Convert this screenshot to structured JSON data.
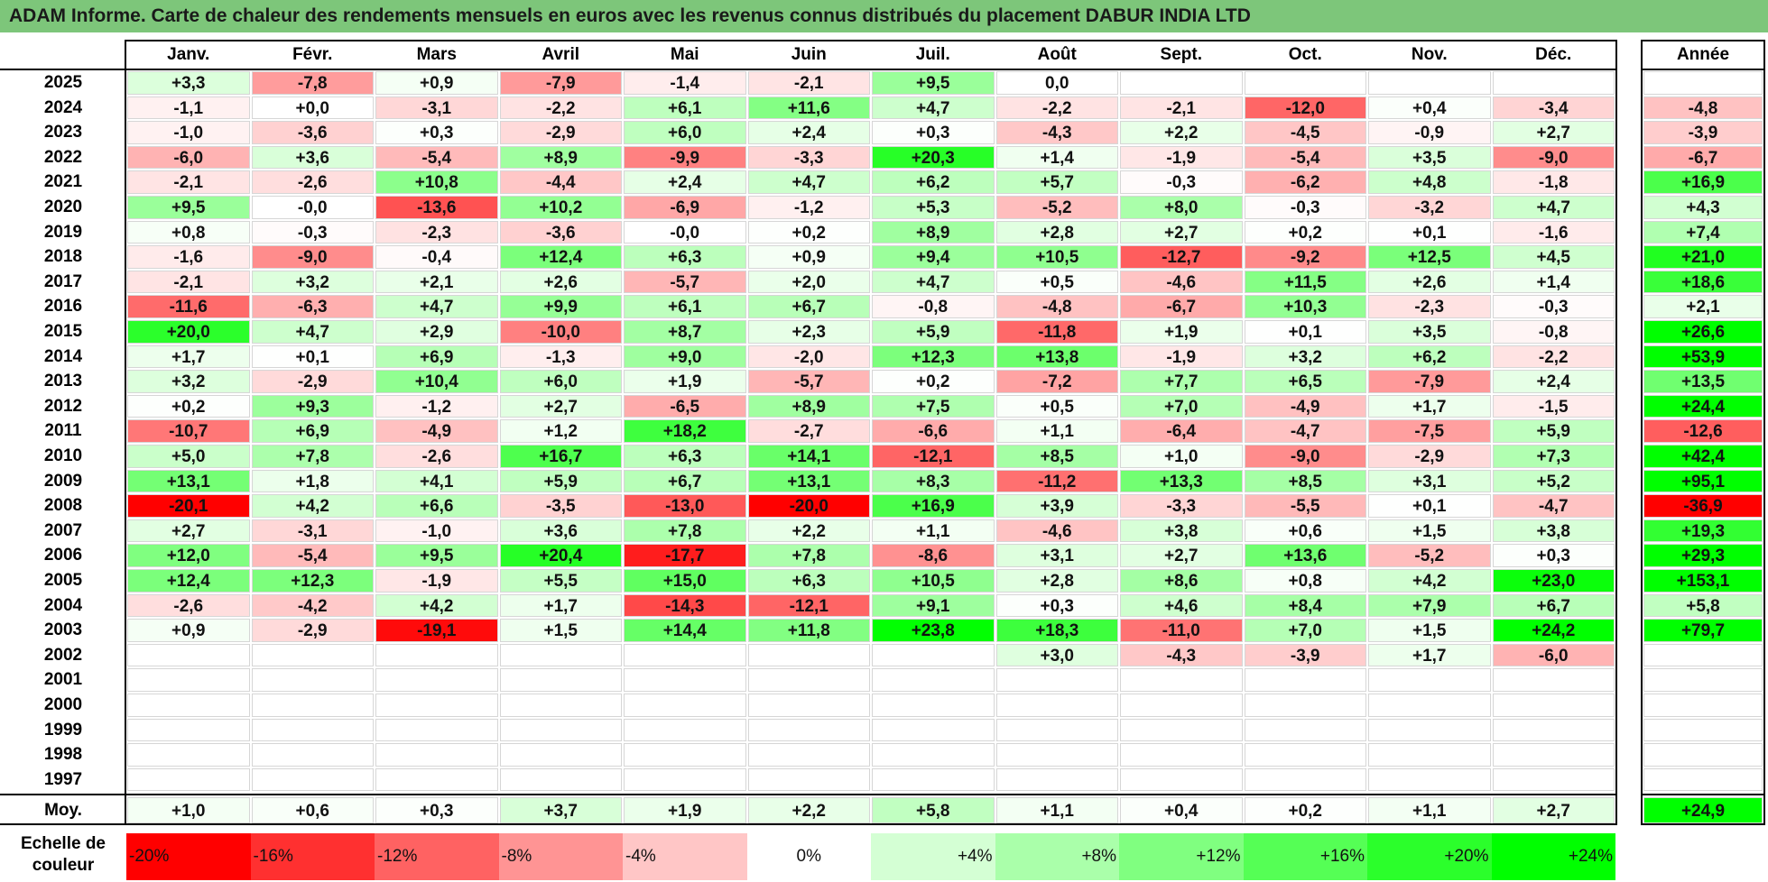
{
  "title": "ADAM Informe. Carte de chaleur des rendements mensuels en euros avec les revenus connus distribués du placement DABUR INDIA LTD",
  "chart_data": {
    "type": "heatmap",
    "title": "ADAM Informe. Carte de chaleur des rendements mensuels en euros avec les revenus connus distribués du placement DABUR INDIA LTD",
    "columns": [
      "Janv.",
      "Févr.",
      "Mars",
      "Avril",
      "Mai",
      "Juin",
      "Juil.",
      "Août",
      "Sept.",
      "Oct.",
      "Nov.",
      "Déc."
    ],
    "year_column_label": "Année",
    "rows": [
      {
        "year": "2025",
        "months": [
          "+3,3",
          "-7,8",
          "+0,9",
          "-7,9",
          "-1,4",
          "-2,1",
          "+9,5",
          "0,0",
          "",
          "",
          "",
          ""
        ],
        "annual": ""
      },
      {
        "year": "2024",
        "months": [
          "-1,1",
          "+0,0",
          "-3,1",
          "-2,2",
          "+6,1",
          "+11,6",
          "+4,7",
          "-2,2",
          "-2,1",
          "-12,0",
          "+0,4",
          "-3,4"
        ],
        "annual": "-4,8"
      },
      {
        "year": "2023",
        "months": [
          "-1,0",
          "-3,6",
          "+0,3",
          "-2,9",
          "+6,0",
          "+2,4",
          "+0,3",
          "-4,3",
          "+2,2",
          "-4,5",
          "-0,9",
          "+2,7"
        ],
        "annual": "-3,9"
      },
      {
        "year": "2022",
        "months": [
          "-6,0",
          "+3,6",
          "-5,4",
          "+8,9",
          "-9,9",
          "-3,3",
          "+20,3",
          "+1,4",
          "-1,9",
          "-5,4",
          "+3,5",
          "-9,0"
        ],
        "annual": "-6,7"
      },
      {
        "year": "2021",
        "months": [
          "-2,1",
          "-2,6",
          "+10,8",
          "-4,4",
          "+2,4",
          "+4,7",
          "+6,2",
          "+5,7",
          "-0,3",
          "-6,2",
          "+4,8",
          "-1,8"
        ],
        "annual": "+16,9"
      },
      {
        "year": "2020",
        "months": [
          "+9,5",
          "-0,0",
          "-13,6",
          "+10,2",
          "-6,9",
          "-1,2",
          "+5,3",
          "-5,2",
          "+8,0",
          "-0,3",
          "-3,2",
          "+4,7"
        ],
        "annual": "+4,3"
      },
      {
        "year": "2019",
        "months": [
          "+0,8",
          "-0,3",
          "-2,3",
          "-3,6",
          "-0,0",
          "+0,2",
          "+8,9",
          "+2,8",
          "+2,7",
          "+0,2",
          "+0,1",
          "-1,6"
        ],
        "annual": "+7,4"
      },
      {
        "year": "2018",
        "months": [
          "-1,6",
          "-9,0",
          "-0,4",
          "+12,4",
          "+6,3",
          "+0,9",
          "+9,4",
          "+10,5",
          "-12,7",
          "-9,2",
          "+12,5",
          "+4,5"
        ],
        "annual": "+21,0"
      },
      {
        "year": "2017",
        "months": [
          "-2,1",
          "+3,2",
          "+2,1",
          "+2,6",
          "-5,7",
          "+2,0",
          "+4,7",
          "+0,5",
          "-4,6",
          "+11,5",
          "+2,6",
          "+1,4"
        ],
        "annual": "+18,6"
      },
      {
        "year": "2016",
        "months": [
          "-11,6",
          "-6,3",
          "+4,7",
          "+9,9",
          "+6,1",
          "+6,7",
          "-0,8",
          "-4,8",
          "-6,7",
          "+10,3",
          "-2,3",
          "-0,3"
        ],
        "annual": "+2,1"
      },
      {
        "year": "2015",
        "months": [
          "+20,0",
          "+4,7",
          "+2,9",
          "-10,0",
          "+8,7",
          "+2,3",
          "+5,9",
          "-11,8",
          "+1,9",
          "+0,1",
          "+3,5",
          "-0,8"
        ],
        "annual": "+26,6"
      },
      {
        "year": "2014",
        "months": [
          "+1,7",
          "+0,1",
          "+6,9",
          "-1,3",
          "+9,0",
          "-2,0",
          "+12,3",
          "+13,8",
          "-1,9",
          "+3,2",
          "+6,2",
          "-2,2"
        ],
        "annual": "+53,9"
      },
      {
        "year": "2013",
        "months": [
          "+3,2",
          "-2,9",
          "+10,4",
          "+6,0",
          "+1,9",
          "-5,7",
          "+0,2",
          "-7,2",
          "+7,7",
          "+6,5",
          "-7,9",
          "+2,4"
        ],
        "annual": "+13,5"
      },
      {
        "year": "2012",
        "months": [
          "+0,2",
          "+9,3",
          "-1,2",
          "+2,7",
          "-6,5",
          "+8,9",
          "+7,5",
          "+0,5",
          "+7,0",
          "-4,9",
          "+1,7",
          "-1,5"
        ],
        "annual": "+24,4"
      },
      {
        "year": "2011",
        "months": [
          "-10,7",
          "+6,9",
          "-4,9",
          "+1,2",
          "+18,2",
          "-2,7",
          "-6,6",
          "+1,1",
          "-6,4",
          "-4,7",
          "-7,5",
          "+5,9"
        ],
        "annual": "-12,6"
      },
      {
        "year": "2010",
        "months": [
          "+5,0",
          "+7,8",
          "-2,6",
          "+16,7",
          "+6,3",
          "+14,1",
          "-12,1",
          "+8,5",
          "+1,0",
          "-9,0",
          "-2,9",
          "+7,3"
        ],
        "annual": "+42,4"
      },
      {
        "year": "2009",
        "months": [
          "+13,1",
          "+1,8",
          "+4,1",
          "+5,9",
          "+6,7",
          "+13,1",
          "+8,3",
          "-11,2",
          "+13,3",
          "+8,5",
          "+3,1",
          "+5,2"
        ],
        "annual": "+95,1"
      },
      {
        "year": "2008",
        "months": [
          "-20,1",
          "+4,2",
          "+6,6",
          "-3,5",
          "-13,0",
          "-20,0",
          "+16,9",
          "+3,9",
          "-3,3",
          "-5,5",
          "+0,1",
          "-4,7"
        ],
        "annual": "-36,9"
      },
      {
        "year": "2007",
        "months": [
          "+2,7",
          "-3,1",
          "-1,0",
          "+3,6",
          "+7,8",
          "+2,2",
          "+1,1",
          "-4,6",
          "+3,8",
          "+0,6",
          "+1,5",
          "+3,8"
        ],
        "annual": "+19,3"
      },
      {
        "year": "2006",
        "months": [
          "+12,0",
          "-5,4",
          "+9,5",
          "+20,4",
          "-17,7",
          "+7,8",
          "-8,6",
          "+3,1",
          "+2,7",
          "+13,6",
          "-5,2",
          "+0,3"
        ],
        "annual": "+29,3"
      },
      {
        "year": "2005",
        "months": [
          "+12,4",
          "+12,3",
          "-1,9",
          "+5,5",
          "+15,0",
          "+6,3",
          "+10,5",
          "+2,8",
          "+8,6",
          "+0,8",
          "+4,2",
          "+23,0"
        ],
        "annual": "+153,1"
      },
      {
        "year": "2004",
        "months": [
          "-2,6",
          "-4,2",
          "+4,2",
          "+1,7",
          "-14,3",
          "-12,1",
          "+9,1",
          "+0,3",
          "+4,6",
          "+8,4",
          "+7,9",
          "+6,7"
        ],
        "annual": "+5,8"
      },
      {
        "year": "2003",
        "months": [
          "+0,9",
          "-2,9",
          "-19,1",
          "+1,5",
          "+14,4",
          "+11,8",
          "+23,8",
          "+18,3",
          "-11,0",
          "+7,0",
          "+1,5",
          "+24,2"
        ],
        "annual": "+79,7"
      },
      {
        "year": "2002",
        "months": [
          "",
          "",
          "",
          "",
          "",
          "",
          "",
          "+3,0",
          "-4,3",
          "-3,9",
          "+1,7",
          "-6,0"
        ],
        "annual": ""
      },
      {
        "year": "2001",
        "months": [
          "",
          "",
          "",
          "",
          "",
          "",
          "",
          "",
          "",
          "",
          "",
          ""
        ],
        "annual": ""
      },
      {
        "year": "2000",
        "months": [
          "",
          "",
          "",
          "",
          "",
          "",
          "",
          "",
          "",
          "",
          "",
          ""
        ],
        "annual": ""
      },
      {
        "year": "1999",
        "months": [
          "",
          "",
          "",
          "",
          "",
          "",
          "",
          "",
          "",
          "",
          "",
          ""
        ],
        "annual": ""
      },
      {
        "year": "1998",
        "months": [
          "",
          "",
          "",
          "",
          "",
          "",
          "",
          "",
          "",
          "",
          "",
          ""
        ],
        "annual": ""
      },
      {
        "year": "1997",
        "months": [
          "",
          "",
          "",
          "",
          "",
          "",
          "",
          "",
          "",
          "",
          "",
          ""
        ],
        "annual": ""
      }
    ],
    "average": {
      "label": "Moy.",
      "months": [
        "+1,0",
        "+0,6",
        "+0,3",
        "+3,7",
        "+1,9",
        "+2,2",
        "+5,8",
        "+1,1",
        "+0,4",
        "+0,2",
        "+1,1",
        "+2,7"
      ],
      "annual": "+24,9"
    },
    "color_scale": {
      "label": "Echelle de couleur",
      "steps": [
        "-20%",
        "-16%",
        "-12%",
        "-8%",
        "-4%",
        "0%",
        "+4%",
        "+8%",
        "+12%",
        "+16%",
        "+20%",
        "+24%"
      ],
      "colors": [
        "#ff0000",
        "#ff3030",
        "#ff6262",
        "#ff9494",
        "#ffc6c6",
        "#ffffff",
        "#d4ffd4",
        "#aaffaa",
        "#80ff80",
        "#55ff55",
        "#2bff2b",
        "#00ff00"
      ]
    }
  }
}
